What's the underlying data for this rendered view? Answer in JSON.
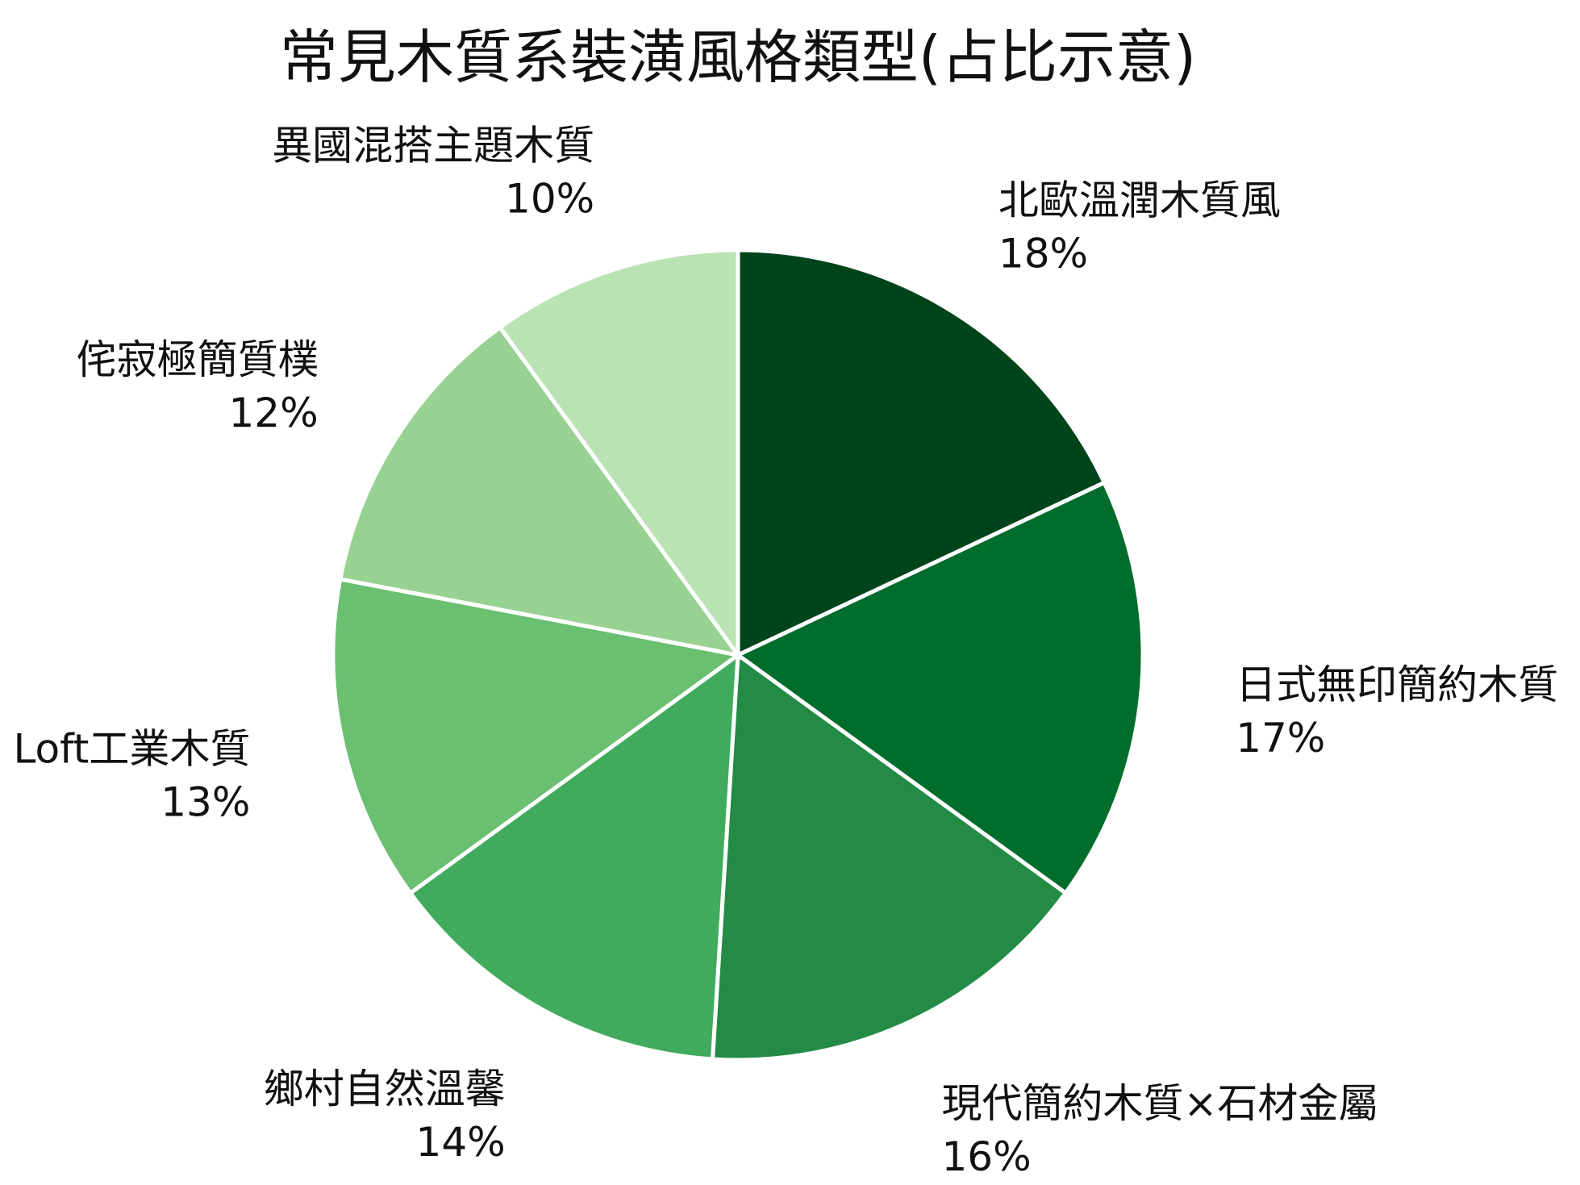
{
  "chart_data": {
    "type": "pie",
    "title": "常見木質系裝潢風格類型(占比示意)",
    "start": "12 o'clock, clockwise",
    "slices": [
      {
        "label": "北歐溫潤木質風",
        "value": 18,
        "value_label": "18%",
        "color": "#00441b"
      },
      {
        "label": "日式無印簡約木質",
        "value": 17,
        "value_label": "17%",
        "color": "#006d2c"
      },
      {
        "label": "現代簡約木質×石材金屬",
        "value": 16,
        "value_label": "16%",
        "color": "#238b45"
      },
      {
        "label": "鄉村自然溫馨",
        "value": 14,
        "value_label": "14%",
        "color": "#41ab5d"
      },
      {
        "label": "Loft工業木質",
        "value": 13,
        "value_label": "13%",
        "color": "#6abf71"
      },
      {
        "label": "侘寂極簡質樸",
        "value": 12,
        "value_label": "12%",
        "color": "#98d293"
      },
      {
        "label": "異國混搭主題木質",
        "value": 10,
        "value_label": "10%",
        "color": "#bae3b3"
      }
    ]
  }
}
